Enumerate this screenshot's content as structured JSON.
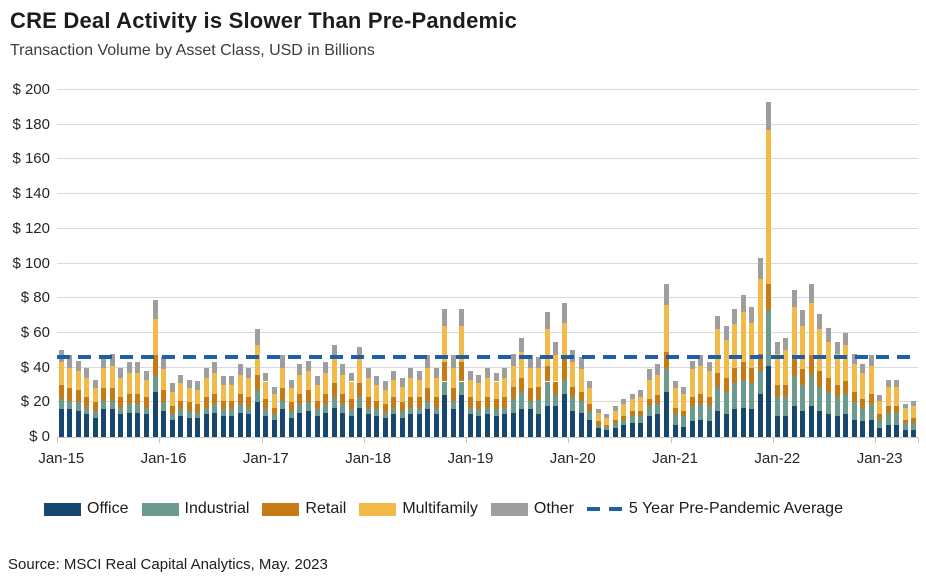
{
  "header": {
    "title": "CRE Deal Activity is Slower Than Pre-Pandemic",
    "subtitle": "Transaction Volume by Asset Class, USD in Billions"
  },
  "footer": {
    "source": "Source: MSCI Real Capital Analytics, May. 2023"
  },
  "colors": {
    "office": "#17466F",
    "industrial": "#6C9A8F",
    "retail": "#C77B14",
    "multifamily": "#F2BA49",
    "other": "#9E9E9E",
    "avg_line": "#1F5FA8",
    "gridline": "#D9D9D9"
  },
  "legend": {
    "items": [
      {
        "label": "Office",
        "color_key": "office"
      },
      {
        "label": "Industrial",
        "color_key": "industrial"
      },
      {
        "label": "Retail",
        "color_key": "retail"
      },
      {
        "label": "Multifamily",
        "color_key": "multifamily"
      },
      {
        "label": "Other",
        "color_key": "other"
      }
    ],
    "avg_label": "5 Year Pre-Pandemic Average"
  },
  "chart_data": {
    "type": "bar",
    "stacked": true,
    "title": "CRE Deal Activity is Slower Than Pre-Pandemic",
    "subtitle": "Transaction Volume by Asset Class, USD in Billions",
    "ylabel": "USD in Billions",
    "ylim": [
      0,
      200
    ],
    "grid": "horizontal",
    "legend_position": "bottom",
    "yticks": [
      {
        "v": 0,
        "label": "$ 0"
      },
      {
        "v": 20,
        "label": "$ 20"
      },
      {
        "v": 40,
        "label": "$ 40"
      },
      {
        "v": 60,
        "label": "$ 60"
      },
      {
        "v": 80,
        "label": "$ 80"
      },
      {
        "v": 100,
        "label": "$ 100"
      },
      {
        "v": 120,
        "label": "$ 120"
      },
      {
        "v": 140,
        "label": "$ 140"
      },
      {
        "v": 160,
        "label": "$ 160"
      },
      {
        "v": 180,
        "label": "$ 180"
      },
      {
        "v": 200,
        "label": "$ 200"
      }
    ],
    "xticks": [
      {
        "label": "Jan-15",
        "month_index": 0
      },
      {
        "label": "Jan-16",
        "month_index": 12
      },
      {
        "label": "Jan-17",
        "month_index": 24
      },
      {
        "label": "Jan-18",
        "month_index": 36
      },
      {
        "label": "Jan-19",
        "month_index": 48
      },
      {
        "label": "Jan-20",
        "month_index": 60
      },
      {
        "label": "Jan-21",
        "month_index": 72
      },
      {
        "label": "Jan-22",
        "month_index": 84
      },
      {
        "label": "Jan-23",
        "month_index": 96
      }
    ],
    "x": [
      "2015-01",
      "2015-02",
      "2015-03",
      "2015-04",
      "2015-05",
      "2015-06",
      "2015-07",
      "2015-08",
      "2015-09",
      "2015-10",
      "2015-11",
      "2015-12",
      "2016-01",
      "2016-02",
      "2016-03",
      "2016-04",
      "2016-05",
      "2016-06",
      "2016-07",
      "2016-08",
      "2016-09",
      "2016-10",
      "2016-11",
      "2016-12",
      "2017-01",
      "2017-02",
      "2017-03",
      "2017-04",
      "2017-05",
      "2017-06",
      "2017-07",
      "2017-08",
      "2017-09",
      "2017-10",
      "2017-11",
      "2017-12",
      "2018-01",
      "2018-02",
      "2018-03",
      "2018-04",
      "2018-05",
      "2018-06",
      "2018-07",
      "2018-08",
      "2018-09",
      "2018-10",
      "2018-11",
      "2018-12",
      "2019-01",
      "2019-02",
      "2019-03",
      "2019-04",
      "2019-05",
      "2019-06",
      "2019-07",
      "2019-08",
      "2019-09",
      "2019-10",
      "2019-11",
      "2019-12",
      "2020-01",
      "2020-02",
      "2020-03",
      "2020-04",
      "2020-05",
      "2020-06",
      "2020-07",
      "2020-08",
      "2020-09",
      "2020-10",
      "2020-11",
      "2020-12",
      "2021-01",
      "2021-02",
      "2021-03",
      "2021-04",
      "2021-05",
      "2021-06",
      "2021-07",
      "2021-08",
      "2021-09",
      "2021-10",
      "2021-11",
      "2021-12",
      "2022-01",
      "2022-02",
      "2022-03",
      "2022-04",
      "2022-05",
      "2022-06",
      "2022-07",
      "2022-08",
      "2022-09",
      "2022-10",
      "2022-11",
      "2022-12",
      "2023-01",
      "2023-02",
      "2023-03",
      "2023-04",
      "2023-05"
    ],
    "series": [
      {
        "name": "Office",
        "color_key": "office",
        "values": [
          16,
          16,
          15,
          13,
          11,
          16,
          16,
          13,
          14,
          14,
          13,
          26,
          15,
          10,
          12,
          11,
          11,
          13,
          14,
          12,
          12,
          14,
          13,
          20,
          12,
          10,
          16,
          11,
          14,
          15,
          12,
          14,
          17,
          14,
          12,
          17,
          13,
          12,
          11,
          13,
          11,
          13,
          13,
          16,
          13,
          24,
          16,
          24,
          13,
          12,
          13,
          12,
          13,
          14,
          16,
          16,
          13,
          18,
          18,
          25,
          15,
          14,
          10,
          5,
          4,
          5,
          7,
          8,
          8,
          12,
          13,
          26,
          7,
          6,
          9,
          10,
          9,
          15,
          13,
          16,
          17,
          16,
          25,
          41,
          12,
          12,
          18,
          15,
          18,
          15,
          13,
          12,
          13,
          10,
          9,
          10,
          5,
          7,
          7,
          4,
          4
        ]
      },
      {
        "name": "Industrial",
        "color_key": "industrial",
        "values": [
          6,
          5,
          5,
          4,
          4,
          5,
          5,
          4,
          5,
          5,
          4,
          9,
          5,
          3,
          4,
          4,
          3,
          4,
          5,
          4,
          4,
          5,
          4,
          7,
          4,
          3,
          5,
          4,
          5,
          5,
          4,
          5,
          6,
          5,
          4,
          6,
          4,
          4,
          3,
          4,
          4,
          4,
          4,
          5,
          4,
          8,
          5,
          8,
          4,
          4,
          4,
          4,
          4,
          8,
          10,
          5,
          9,
          14,
          6,
          8,
          8,
          7,
          5,
          2,
          2,
          3,
          3,
          4,
          4,
          6,
          6,
          13,
          6,
          6,
          9,
          9,
          9,
          14,
          13,
          15,
          16,
          15,
          13,
          32,
          11,
          11,
          17,
          15,
          18,
          14,
          13,
          11,
          12,
          10,
          8,
          9,
          5,
          7,
          7,
          4,
          4
        ]
      },
      {
        "name": "Retail",
        "color_key": "retail",
        "values": [
          8,
          7,
          7,
          6,
          5,
          7,
          7,
          6,
          6,
          6,
          6,
          12,
          7,
          5,
          5,
          5,
          5,
          6,
          6,
          5,
          5,
          6,
          6,
          9,
          6,
          4,
          7,
          5,
          6,
          7,
          5,
          6,
          8,
          6,
          6,
          8,
          6,
          5,
          5,
          6,
          5,
          6,
          6,
          7,
          6,
          11,
          7,
          11,
          6,
          5,
          6,
          6,
          6,
          7,
          8,
          7,
          7,
          9,
          8,
          12,
          6,
          5,
          4,
          2,
          1,
          2,
          2,
          3,
          3,
          4,
          5,
          10,
          4,
          3,
          5,
          6,
          5,
          8,
          8,
          9,
          10,
          9,
          10,
          15,
          7,
          7,
          10,
          9,
          11,
          9,
          8,
          7,
          7,
          6,
          5,
          6,
          3,
          4,
          4,
          2,
          3
        ]
      },
      {
        "name": "Multifamily",
        "color_key": "multifamily",
        "values": [
          13,
          12,
          11,
          11,
          8,
          12,
          13,
          11,
          12,
          12,
          10,
          21,
          12,
          8,
          10,
          8,
          8,
          11,
          12,
          9,
          9,
          11,
          11,
          17,
          10,
          8,
          12,
          8,
          11,
          11,
          9,
          12,
          14,
          11,
          10,
          14,
          11,
          9,
          8,
          10,
          9,
          11,
          10,
          12,
          11,
          21,
          12,
          21,
          10,
          10,
          11,
          10,
          11,
          12,
          15,
          12,
          11,
          21,
          15,
          21,
          14,
          13,
          9,
          5,
          4,
          5,
          7,
          7,
          8,
          11,
          12,
          27,
          11,
          10,
          16,
          16,
          15,
          25,
          22,
          25,
          29,
          26,
          43,
          89,
          18,
          20,
          30,
          25,
          30,
          24,
          21,
          18,
          21,
          16,
          15,
          16,
          8,
          11,
          11,
          7,
          7
        ]
      },
      {
        "name": "Other",
        "color_key": "other",
        "values": [
          7,
          7,
          6,
          6,
          5,
          7,
          7,
          6,
          6,
          6,
          5,
          11,
          7,
          5,
          5,
          5,
          5,
          6,
          6,
          5,
          5,
          6,
          6,
          9,
          5,
          4,
          7,
          5,
          6,
          6,
          5,
          6,
          8,
          6,
          5,
          7,
          6,
          5,
          5,
          5,
          5,
          6,
          5,
          7,
          6,
          10,
          7,
          10,
          5,
          5,
          6,
          5,
          6,
          7,
          8,
          7,
          6,
          10,
          8,
          11,
          7,
          7,
          4,
          2,
          2,
          3,
          3,
          3,
          4,
          6,
          6,
          12,
          4,
          4,
          5,
          6,
          5,
          8,
          8,
          9,
          10,
          9,
          12,
          16,
          7,
          7,
          10,
          9,
          11,
          9,
          8,
          7,
          7,
          6,
          5,
          6,
          3,
          4,
          4,
          2,
          3
        ]
      }
    ],
    "avg_line": {
      "label": "5 Year Pre-Pandemic Average",
      "value": 46
    }
  }
}
